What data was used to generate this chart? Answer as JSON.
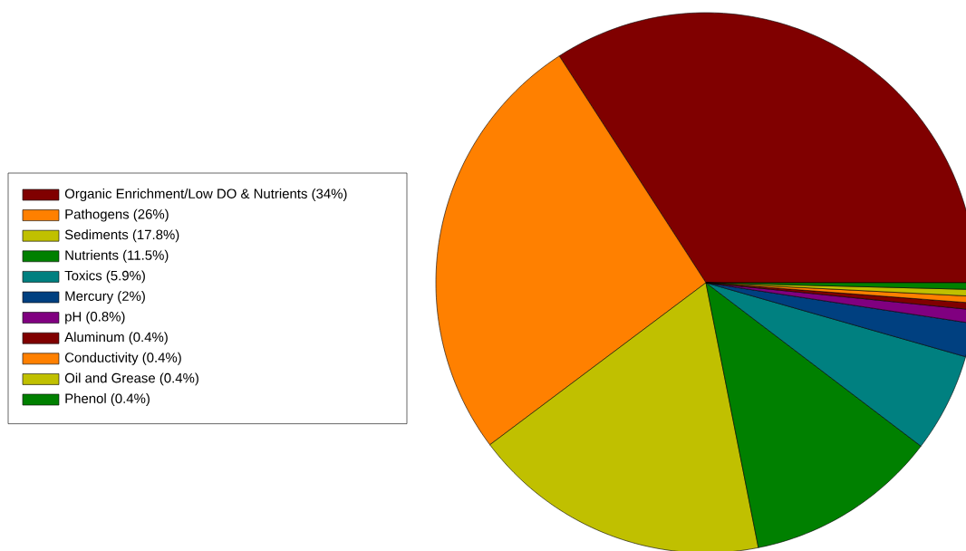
{
  "chart_data": {
    "type": "pie",
    "categories": [
      "Organic Enrichment/Low DO & Nutrients (34%)",
      "Pathogens (26%)",
      "Sediments (17.8%)",
      "Nutrients (11.5%)",
      "Toxics (5.9%)",
      "Mercury (2%)",
      "pH (0.8%)",
      "Aluminum (0.4%)",
      "Conductivity (0.4%)",
      "Oil and Grease (0.4%)",
      "Phenol (0.4%)"
    ],
    "values": [
      34,
      26,
      17.8,
      11.5,
      5.9,
      2,
      0.8,
      0.4,
      0.4,
      0.4,
      0.4
    ],
    "colors": [
      "#800000",
      "#ff8000",
      "#c0c000",
      "#008000",
      "#008080",
      "#004080",
      "#800080",
      "#800000",
      "#ff8000",
      "#c0c000",
      "#008000"
    ],
    "legend": "left"
  }
}
